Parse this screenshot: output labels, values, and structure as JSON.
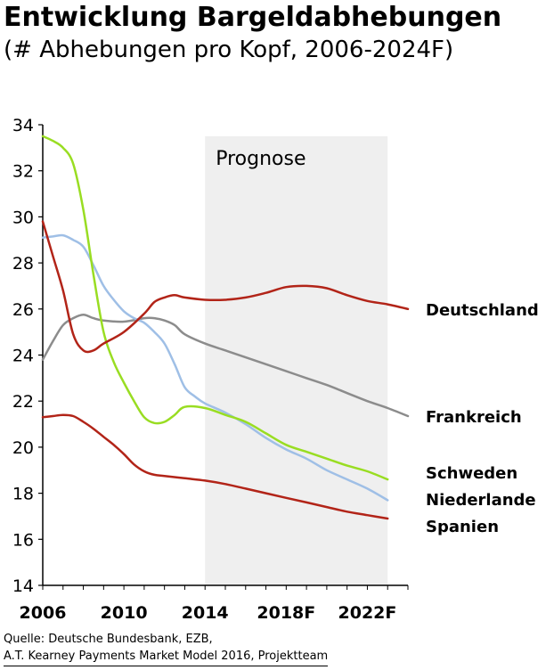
{
  "header": {
    "title": "Entwicklung Bargeldabhebungen",
    "subtitle": "(# Abhebungen pro Kopf, 2006-2024F)"
  },
  "source": {
    "line1": "Quelle: Deutsche Bundesbank, EZB,",
    "line2": "A.T. Kearney Payments Market Model 2016, Projektteam"
  },
  "chart_data": {
    "type": "line",
    "x_ticks": [
      {
        "x": 2006,
        "label": "2006"
      },
      {
        "x": 2010,
        "label": "2010"
      },
      {
        "x": 2014,
        "label": "2014"
      },
      {
        "x": 2018,
        "label": "2018F"
      },
      {
        "x": 2022,
        "label": "2022F"
      }
    ],
    "xlim": [
      2006,
      2024
    ],
    "ylim": [
      14,
      34
    ],
    "y_ticks": [
      14,
      16,
      18,
      20,
      22,
      24,
      26,
      28,
      30,
      32,
      34
    ],
    "forecast_region": {
      "start": 2014,
      "end": 2023,
      "label": "Prognose",
      "color": "#efefef"
    },
    "grid": false,
    "series": [
      {
        "name": "Deutschland",
        "color": "#b22418",
        "points": [
          [
            2006,
            29.8
          ],
          [
            2006.5,
            28.3
          ],
          [
            2007,
            26.8
          ],
          [
            2007.5,
            24.9
          ],
          [
            2008,
            24.2
          ],
          [
            2008.5,
            24.2
          ],
          [
            2009,
            24.5
          ],
          [
            2010,
            25.0
          ],
          [
            2011,
            25.8
          ],
          [
            2011.5,
            26.3
          ],
          [
            2012,
            26.5
          ],
          [
            2012.5,
            26.6
          ],
          [
            2013,
            26.5
          ],
          [
            2014,
            26.4
          ],
          [
            2015,
            26.4
          ],
          [
            2016,
            26.5
          ],
          [
            2017,
            26.7
          ],
          [
            2018,
            26.95
          ],
          [
            2019,
            27.0
          ],
          [
            2020,
            26.9
          ],
          [
            2021,
            26.6
          ],
          [
            2022,
            26.35
          ],
          [
            2023,
            26.2
          ],
          [
            2024,
            26.0
          ]
        ]
      },
      {
        "name": "Frankreich",
        "color": "#8c8c8c",
        "points": [
          [
            2006,
            23.8
          ],
          [
            2006.5,
            24.6
          ],
          [
            2007,
            25.3
          ],
          [
            2007.5,
            25.6
          ],
          [
            2008,
            25.75
          ],
          [
            2008.5,
            25.6
          ],
          [
            2009,
            25.5
          ],
          [
            2010,
            25.45
          ],
          [
            2011,
            25.6
          ],
          [
            2011.5,
            25.6
          ],
          [
            2012,
            25.5
          ],
          [
            2012.5,
            25.3
          ],
          [
            2013,
            24.9
          ],
          [
            2014,
            24.5
          ],
          [
            2015,
            24.2
          ],
          [
            2016,
            23.9
          ],
          [
            2017,
            23.6
          ],
          [
            2018,
            23.3
          ],
          [
            2019,
            23.0
          ],
          [
            2020,
            22.7
          ],
          [
            2021,
            22.35
          ],
          [
            2022,
            22.0
          ],
          [
            2023,
            21.7
          ],
          [
            2024,
            21.35
          ]
        ]
      },
      {
        "name": "Schweden",
        "color": "#99dd22",
        "points": [
          [
            2006,
            33.5
          ],
          [
            2006.5,
            33.3
          ],
          [
            2007,
            33.0
          ],
          [
            2007.5,
            32.3
          ],
          [
            2008,
            30.3
          ],
          [
            2008.5,
            27.5
          ],
          [
            2009,
            25.0
          ],
          [
            2009.5,
            23.7
          ],
          [
            2010,
            22.8
          ],
          [
            2010.5,
            22.0
          ],
          [
            2011,
            21.3
          ],
          [
            2011.5,
            21.05
          ],
          [
            2012,
            21.1
          ],
          [
            2012.5,
            21.4
          ],
          [
            2013,
            21.75
          ],
          [
            2014,
            21.7
          ],
          [
            2015,
            21.4
          ],
          [
            2016,
            21.1
          ],
          [
            2017,
            20.6
          ],
          [
            2018,
            20.1
          ],
          [
            2019,
            19.8
          ],
          [
            2020,
            19.5
          ],
          [
            2021,
            19.2
          ],
          [
            2022,
            18.95
          ],
          [
            2023,
            18.6
          ]
        ]
      },
      {
        "name": "Niederlande",
        "color": "#9fbfe6",
        "points": [
          [
            2006,
            29.1
          ],
          [
            2006.5,
            29.15
          ],
          [
            2007,
            29.2
          ],
          [
            2007.5,
            29.0
          ],
          [
            2008,
            28.7
          ],
          [
            2008.5,
            27.9
          ],
          [
            2009,
            27.0
          ],
          [
            2009.5,
            26.4
          ],
          [
            2010,
            25.9
          ],
          [
            2010.5,
            25.6
          ],
          [
            2011,
            25.4
          ],
          [
            2011.5,
            25.0
          ],
          [
            2012,
            24.5
          ],
          [
            2012.5,
            23.6
          ],
          [
            2013,
            22.6
          ],
          [
            2013.5,
            22.2
          ],
          [
            2014,
            21.9
          ],
          [
            2015,
            21.5
          ],
          [
            2016,
            21.0
          ],
          [
            2017,
            20.4
          ],
          [
            2018,
            19.9
          ],
          [
            2019,
            19.5
          ],
          [
            2020,
            19.0
          ],
          [
            2021,
            18.6
          ],
          [
            2022,
            18.2
          ],
          [
            2023,
            17.7
          ]
        ]
      },
      {
        "name": "Spanien",
        "color": "#b22418",
        "points": [
          [
            2006,
            21.3
          ],
          [
            2006.5,
            21.35
          ],
          [
            2007,
            21.4
          ],
          [
            2007.5,
            21.35
          ],
          [
            2008,
            21.1
          ],
          [
            2008.5,
            20.8
          ],
          [
            2009,
            20.45
          ],
          [
            2009.5,
            20.1
          ],
          [
            2010,
            19.7
          ],
          [
            2010.5,
            19.25
          ],
          [
            2011,
            18.95
          ],
          [
            2011.5,
            18.8
          ],
          [
            2012,
            18.75
          ],
          [
            2013,
            18.65
          ],
          [
            2014,
            18.55
          ],
          [
            2015,
            18.4
          ],
          [
            2016,
            18.2
          ],
          [
            2017,
            18.0
          ],
          [
            2018,
            17.8
          ],
          [
            2019,
            17.6
          ],
          [
            2020,
            17.4
          ],
          [
            2021,
            17.2
          ],
          [
            2022,
            17.05
          ],
          [
            2023,
            16.9
          ]
        ]
      }
    ],
    "end_labels": [
      {
        "series": "Deutschland",
        "text": "Deutschland"
      },
      {
        "series": "Frankreich",
        "text": "Frankreich"
      },
      {
        "series": "Schweden",
        "text": "Schweden"
      },
      {
        "series": "Niederlande",
        "text": "Niederlande"
      },
      {
        "series": "Spanien",
        "text": "Spanien"
      }
    ]
  }
}
